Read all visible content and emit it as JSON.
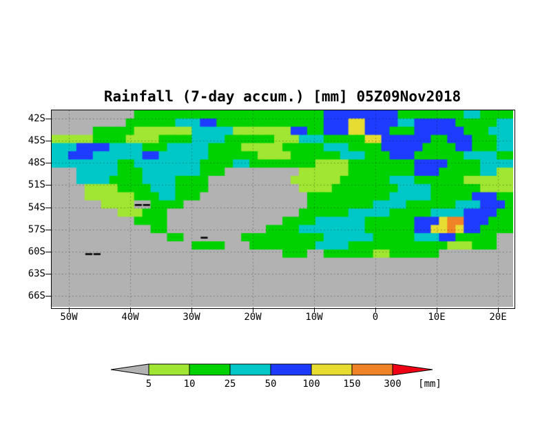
{
  "title": "Rainfall (7-day accum.) [mm] 05Z09Nov2018",
  "legend": {
    "labels": [
      "5",
      "10",
      "25",
      "50",
      "100",
      "150",
      "300"
    ],
    "unit": "[mm]",
    "colors": [
      "#b2b2b2",
      "#a0e632",
      "#00d200",
      "#00c8c8",
      "#1e3cff",
      "#e6dc32",
      "#f08228",
      "#f00014"
    ]
  },
  "chart_data": {
    "type": "heatmap",
    "title": "Rainfall (7-day accum.) [mm] 05Z09Nov2018",
    "x_ticks": [
      "50W",
      "40W",
      "30W",
      "20W",
      "10W",
      "0",
      "10E",
      "20E"
    ],
    "y_ticks": [
      "42S",
      "45S",
      "48S",
      "51S",
      "54S",
      "57S",
      "60S",
      "63S",
      "66S"
    ],
    "levels_mm": [
      5,
      10,
      25,
      50,
      100,
      150,
      300
    ],
    "value_bins": [
      "<5",
      "5-10",
      "10-25",
      "25-50",
      "50-100",
      "100-150",
      "150-300",
      ">300"
    ],
    "palette": {
      ".": "#b2b2b2",
      "a": "#a0e632",
      "g": "#00d200",
      "c": "#00c8c8",
      "b": "#1e3cff",
      "y": "#e6dc32",
      "o": "#f08228",
      "r": "#f00014",
      "k": "#000000"
    },
    "cols": 56,
    "rows": 24,
    "grid": [
      "..........gggggggggggggggggggggggbbbbbbbbbggggggggccgggg",
      ".........ggggggcccbbgggggggggggggbbbyybbbbccbbbbbgggggcc",
      ".....gggggaaaaaaacccccaaaaaaabbggbbbyybbbgggbbbbbbgggccc",
      "aaaaaggggaaaaggggccccggggggaaacccgggggyybbbbbbggbbbgggcc",
      "cccbbbbccccgggcccccggggaaaaagggggcccggggbbbbbggggbbgggcc",
      "ccbbbccccccbbccccccggggggaaaaggggggcccgggbbbggggggccccgg",
      "ccccccccggccccccccggggccggggggggaaaaggggggggbbbbggggcccc",
      "...cccccgggcccccccggg.........aaaaaaggggggggbbbgggggccaa",
      "...ccccggggccccgggg..........aaaaaaggggggcccggggggaaaaaa",
      "....aaaaggggcccgggg...........aaaaggggggggccccggggggaaaa",
      "....aaaaaagggccggg.............ggggggggggcccccgggggbbbgg",
      "......aaaakkgggg...............ggggggggccccggggggcccbbbg",
      "........aaaggg................ggggggcccccgggggccccbbbbgg",
      "..........gggg..............ggggccccccggggggbbbyoobbbggg",
      "............gg............ggggccccccccggggggbbyyoybbgggg",
      "..............gg..k....ggggggggggccccccgggggcccbbggggg..",
      ".................gggg...ggggggggccccggggggggggggaaaggg..",
      "....kk......................ggg..ggggggaagggggg.........",
      "",
      "",
      "",
      "",
      "",
      ""
    ]
  }
}
